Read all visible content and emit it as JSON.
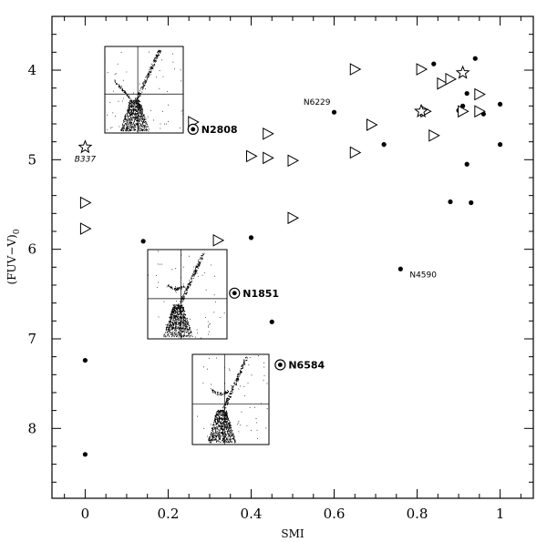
{
  "chart_data": {
    "type": "scatter",
    "xlabel": "SMI",
    "ylabel": "(FUV−V)",
    "ylabel_subscript": "0",
    "xlim": [
      -0.08,
      1.08
    ],
    "ylim": [
      8.78,
      3.4
    ],
    "y_inverted": true,
    "x_ticks": [
      "0",
      "0.2",
      "0.4",
      "0.6",
      "0.8",
      "1"
    ],
    "x_tick_values": [
      0,
      0.2,
      0.4,
      0.6,
      0.8,
      1.0
    ],
    "y_ticks": [
      "4",
      "5",
      "6",
      "7",
      "8"
    ],
    "y_tick_values": [
      4,
      5,
      6,
      7,
      8
    ],
    "series": [
      {
        "marker": "filled-circle",
        "points": [
          {
            "x": 0.6,
            "y": 4.47
          },
          {
            "x": 0.72,
            "y": 4.83
          },
          {
            "x": 0.84,
            "y": 3.93
          },
          {
            "x": 0.94,
            "y": 3.87
          },
          {
            "x": 0.92,
            "y": 4.26
          },
          {
            "x": 0.91,
            "y": 4.4
          },
          {
            "x": 0.9,
            "y": 4.45
          },
          {
            "x": 0.96,
            "y": 4.49
          },
          {
            "x": 1.0,
            "y": 4.38
          },
          {
            "x": 1.0,
            "y": 4.83
          },
          {
            "x": 0.92,
            "y": 5.05
          },
          {
            "x": 0.88,
            "y": 5.47
          },
          {
            "x": 0.93,
            "y": 5.48
          },
          {
            "x": 0.76,
            "y": 6.22
          },
          {
            "x": 0.4,
            "y": 5.87
          },
          {
            "x": 0.14,
            "y": 5.91
          },
          {
            "x": 0.45,
            "y": 6.81
          },
          {
            "x": 0.0,
            "y": 7.24
          },
          {
            "x": 0.0,
            "y": 8.29
          }
        ]
      },
      {
        "marker": "open-triangle",
        "points": [
          {
            "x": 0.65,
            "y": 3.99
          },
          {
            "x": 0.81,
            "y": 3.99
          },
          {
            "x": 0.86,
            "y": 4.15
          },
          {
            "x": 0.88,
            "y": 4.1
          },
          {
            "x": 0.95,
            "y": 4.27
          },
          {
            "x": 0.82,
            "y": 4.46
          },
          {
            "x": 0.91,
            "y": 4.46
          },
          {
            "x": 0.95,
            "y": 4.46
          },
          {
            "x": 0.69,
            "y": 4.61
          },
          {
            "x": 0.84,
            "y": 4.73
          },
          {
            "x": 0.65,
            "y": 4.92
          },
          {
            "x": 0.26,
            "y": 4.58
          },
          {
            "x": 0.44,
            "y": 4.71
          },
          {
            "x": 0.4,
            "y": 4.96
          },
          {
            "x": 0.44,
            "y": 4.98
          },
          {
            "x": 0.5,
            "y": 5.01
          },
          {
            "x": 0.0,
            "y": 5.48
          },
          {
            "x": 0.0,
            "y": 5.77
          },
          {
            "x": 0.5,
            "y": 5.65
          },
          {
            "x": 0.32,
            "y": 5.9
          }
        ]
      },
      {
        "marker": "open-star",
        "points": [
          {
            "x": 0.91,
            "y": 4.03
          },
          {
            "x": 0.81,
            "y": 4.46
          },
          {
            "x": 0.0,
            "y": 4.86
          }
        ]
      },
      {
        "marker": "circled-dot",
        "points": [
          {
            "x": 0.26,
            "y": 4.66
          },
          {
            "x": 0.36,
            "y": 6.49
          },
          {
            "x": 0.47,
            "y": 7.29
          }
        ]
      }
    ],
    "annotations": [
      {
        "text": "N2808",
        "x": 0.26,
        "y": 4.66,
        "style": "bold"
      },
      {
        "text": "N1851",
        "x": 0.36,
        "y": 6.49,
        "style": "bold"
      },
      {
        "text": "N6584",
        "x": 0.47,
        "y": 7.29,
        "style": "bold"
      },
      {
        "text": "N6229",
        "x": 0.6,
        "y": 4.47,
        "style": "small"
      },
      {
        "text": "N4590",
        "x": 0.76,
        "y": 6.22,
        "style": "small"
      },
      {
        "text": "B337",
        "x": 0.0,
        "y": 4.86,
        "style": "italic"
      }
    ],
    "insets": [
      {
        "name": "N2808 CMD",
        "anchor": "N2808"
      },
      {
        "name": "N1851 CMD",
        "anchor": "N1851"
      },
      {
        "name": "N6584 CMD",
        "anchor": "N6584"
      }
    ],
    "grid": false
  }
}
